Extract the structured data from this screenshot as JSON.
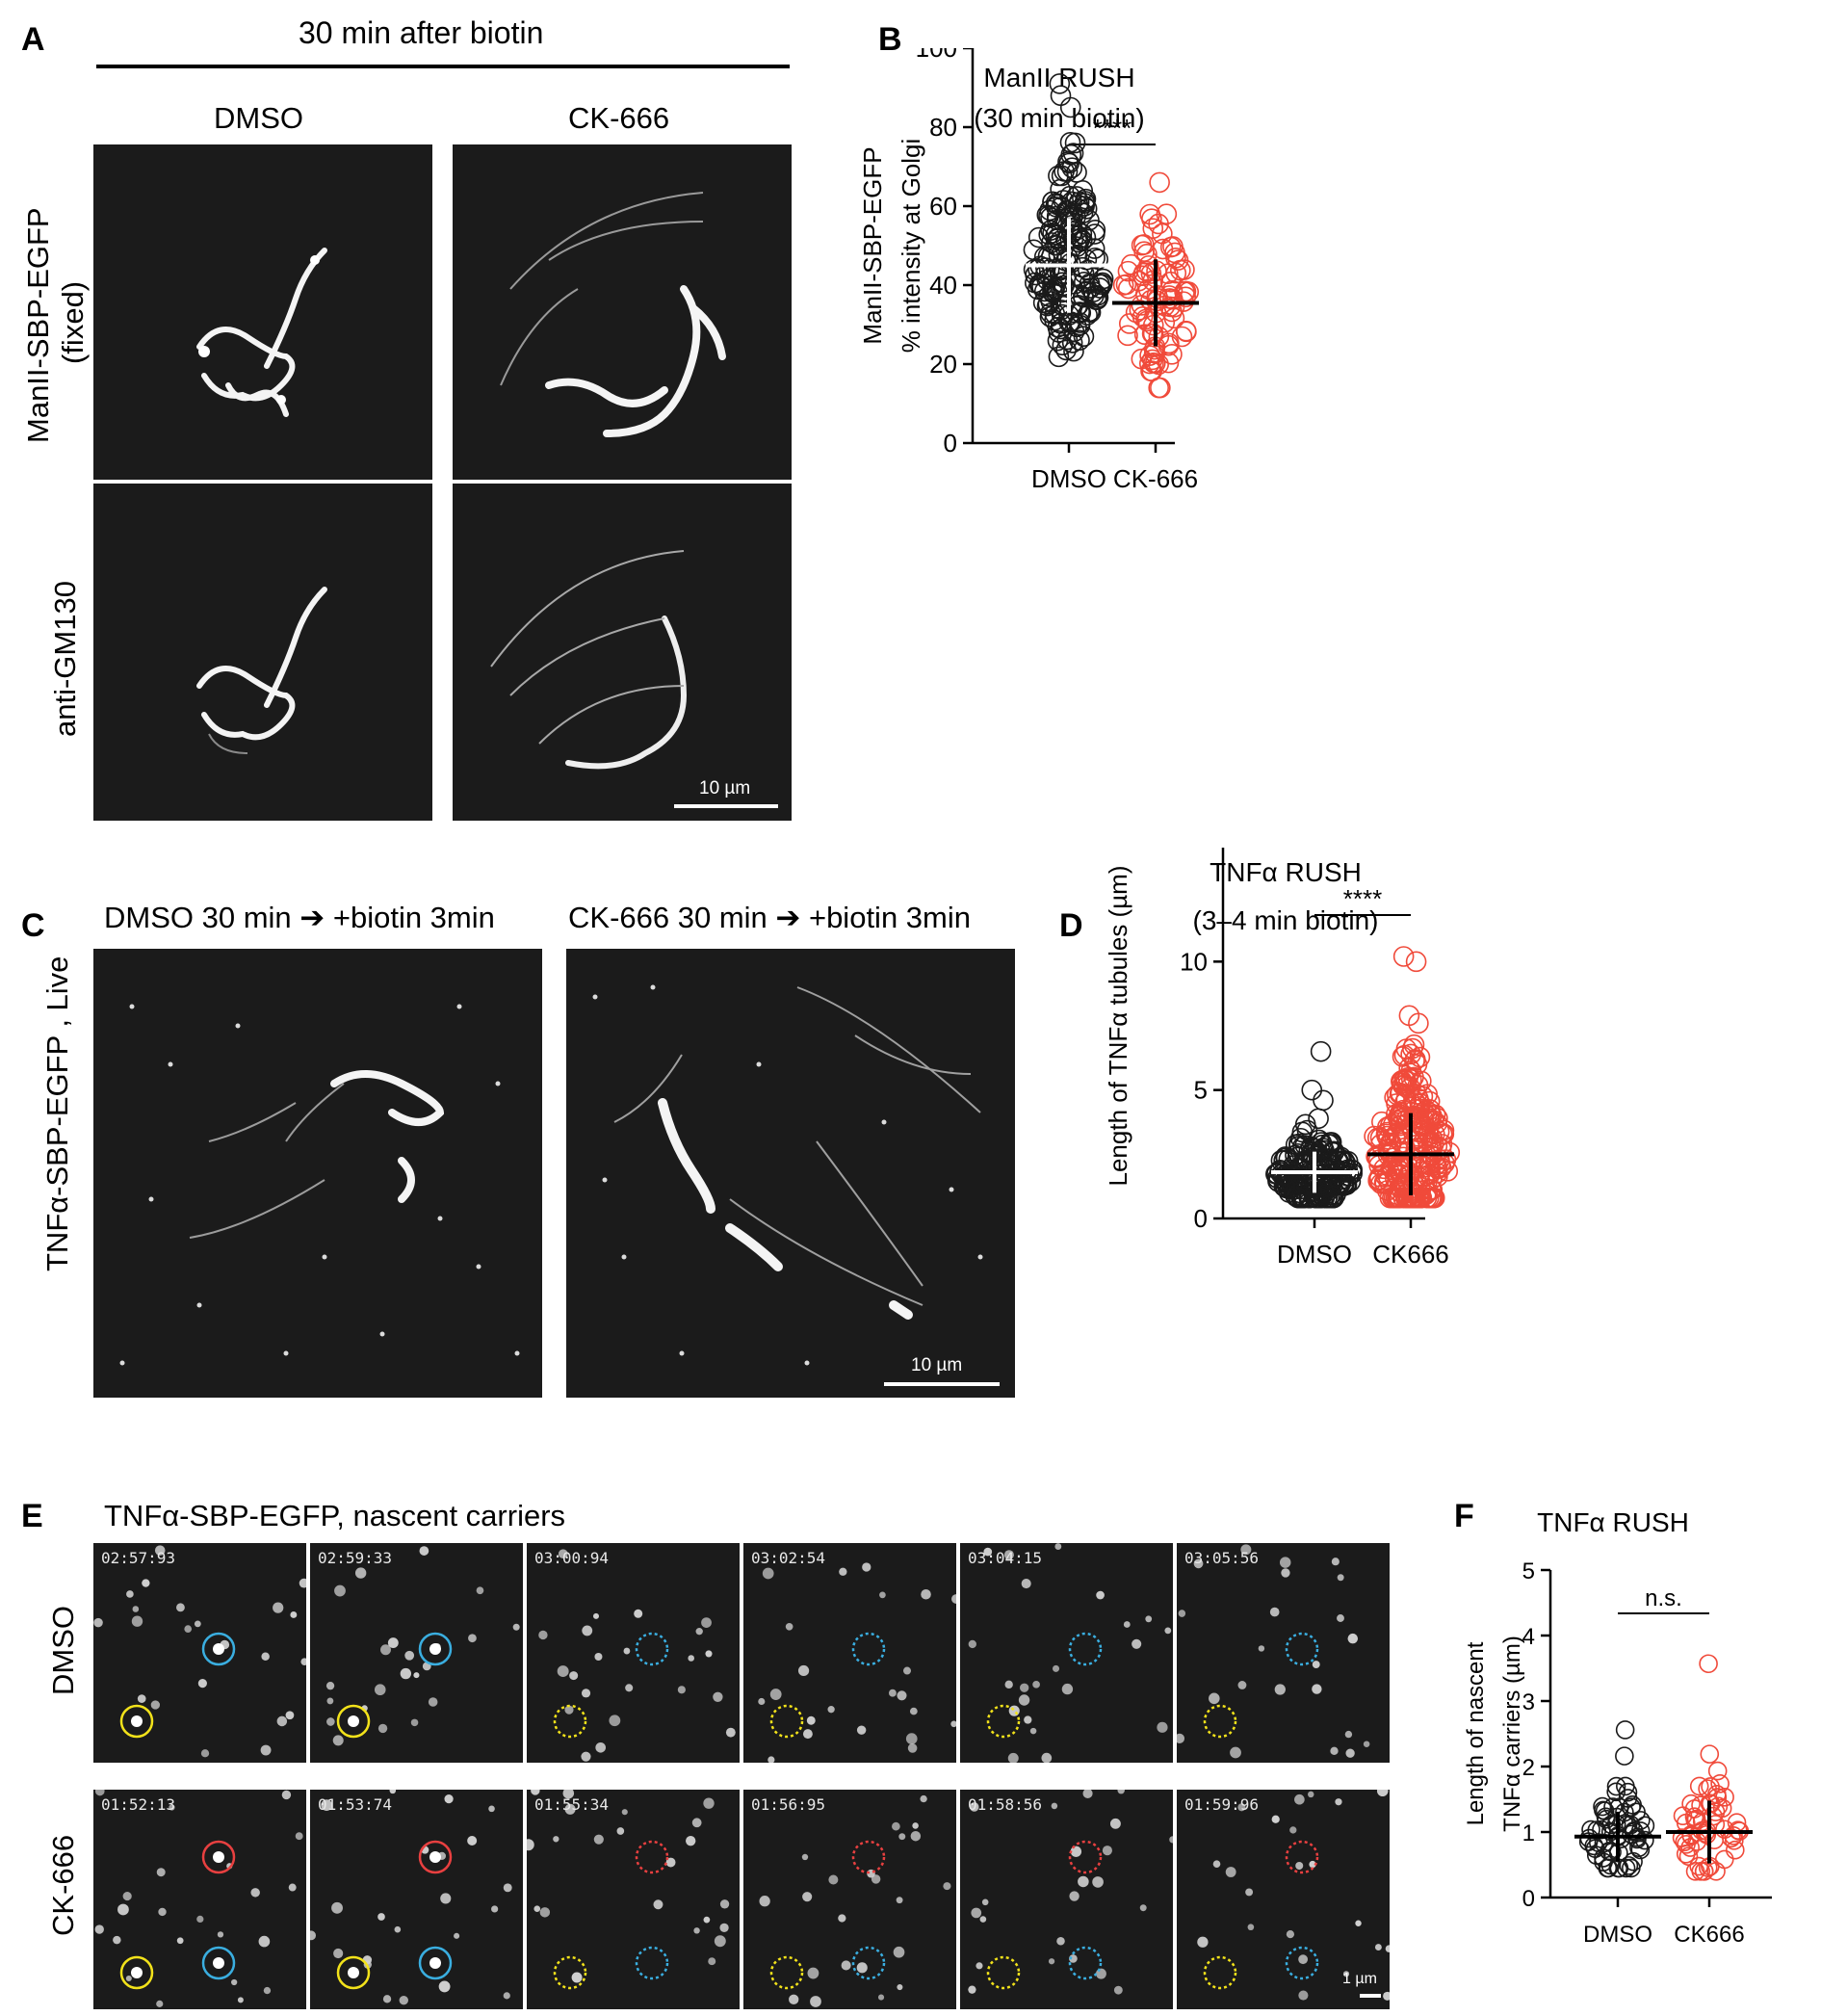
{
  "panels": {
    "A": {
      "label": "A",
      "header": "30 min after biotin",
      "col_labels": [
        "DMSO",
        "CK-666"
      ],
      "row_labels": [
        "ManII-SBP-EGFP",
        "(fixed)",
        "anti-GM130"
      ],
      "scalebar": "10 µm"
    },
    "B": {
      "label": "B"
    },
    "C": {
      "label": "C",
      "col_labels": [
        "DMSO 30 min ➔ +biotin 3min",
        "CK-666 30 min ➔ +biotin 3min"
      ],
      "row_label": "TNFα-SBP-EGFP , Live",
      "scalebar": "10 µm"
    },
    "D": {
      "label": "D"
    },
    "E": {
      "label": "E",
      "header": "TNFα-SBP-EGFP,  nascent carriers",
      "row_labels": [
        "DMSO",
        "CK-666"
      ],
      "timestamps_dmso": [
        "02:57:93",
        "02:59:33",
        "03:00:94",
        "03:02:54",
        "03:04:15",
        "03:05:56"
      ],
      "timestamps_ck666": [
        "01:52:13",
        "01:53:74",
        "01:55:34",
        "01:56:95",
        "01:58:56",
        "01:59:96"
      ],
      "scalebar": "1 µm"
    },
    "F": {
      "label": "F"
    }
  },
  "colors": {
    "dmso": "#1a1a1a",
    "ck666": "#f04a3a",
    "circle_blue": "#3aaee0",
    "circle_yellow": "#f2e21a",
    "circle_red": "#e84040"
  },
  "chart_data": [
    {
      "id": "B",
      "type": "scatter",
      "title": "ManII RUSH",
      "subtitle": "(30 min biotin)",
      "ylabel_lines": [
        "ManII-SBP-EGFP",
        "% intensity at Golgi"
      ],
      "categories": [
        "DMSO",
        "CK-666"
      ],
      "ylim": [
        0,
        100
      ],
      "yticks": [
        0,
        20,
        40,
        60,
        80,
        100
      ],
      "significance": "****",
      "series": [
        {
          "name": "DMSO",
          "mean": 45,
          "sd": 12,
          "n": 180,
          "min": 20,
          "max": 91,
          "extra_points": [
            91,
            88,
            85,
            73
          ]
        },
        {
          "name": "CK-666",
          "mean": 35.5,
          "sd": 11,
          "n": 90,
          "min": 14,
          "max": 66,
          "extra_points": [
            66,
            58
          ]
        }
      ]
    },
    {
      "id": "D",
      "type": "scatter",
      "title": "TNFα RUSH",
      "subtitle": "(3–4 min biotin)",
      "ylabel_lines": [
        "Length of TNFα tubules (µm)"
      ],
      "categories": [
        "DMSO",
        "CK666"
      ],
      "ylim": [
        0,
        15
      ],
      "yticks": [
        0,
        5,
        10,
        15
      ],
      "significance": "****",
      "series": [
        {
          "name": "DMSO",
          "mean": 1.8,
          "sd": 0.8,
          "n": 200,
          "min": 0.8,
          "max": 6.5,
          "extra_points": [
            6.5,
            5.0,
            4.6
          ]
        },
        {
          "name": "CK666",
          "mean": 2.5,
          "sd": 1.6,
          "n": 260,
          "min": 0.8,
          "max": 10.2,
          "extra_points": [
            10.2,
            10.0,
            7.9,
            7.6,
            6.6,
            6.3
          ]
        }
      ]
    },
    {
      "id": "F",
      "type": "scatter",
      "title": "TNFα RUSH",
      "subtitle": "",
      "ylabel_lines": [
        "Length of nascent",
        "TNFα carriers (µm)"
      ],
      "categories": [
        "DMSO",
        "CK666"
      ],
      "ylim": [
        0,
        5
      ],
      "yticks": [
        0,
        1,
        2,
        3,
        4,
        5
      ],
      "significance": "n.s.",
      "series": [
        {
          "name": "DMSO",
          "mean": 0.93,
          "sd": 0.38,
          "n": 60,
          "min": 0.45,
          "max": 2.56,
          "extra_points": [
            2.56,
            2.16,
            1.7
          ]
        },
        {
          "name": "CK666",
          "mean": 1.0,
          "sd": 0.48,
          "n": 55,
          "min": 0.4,
          "max": 3.57,
          "extra_points": [
            3.57,
            1.7
          ]
        }
      ]
    }
  ]
}
